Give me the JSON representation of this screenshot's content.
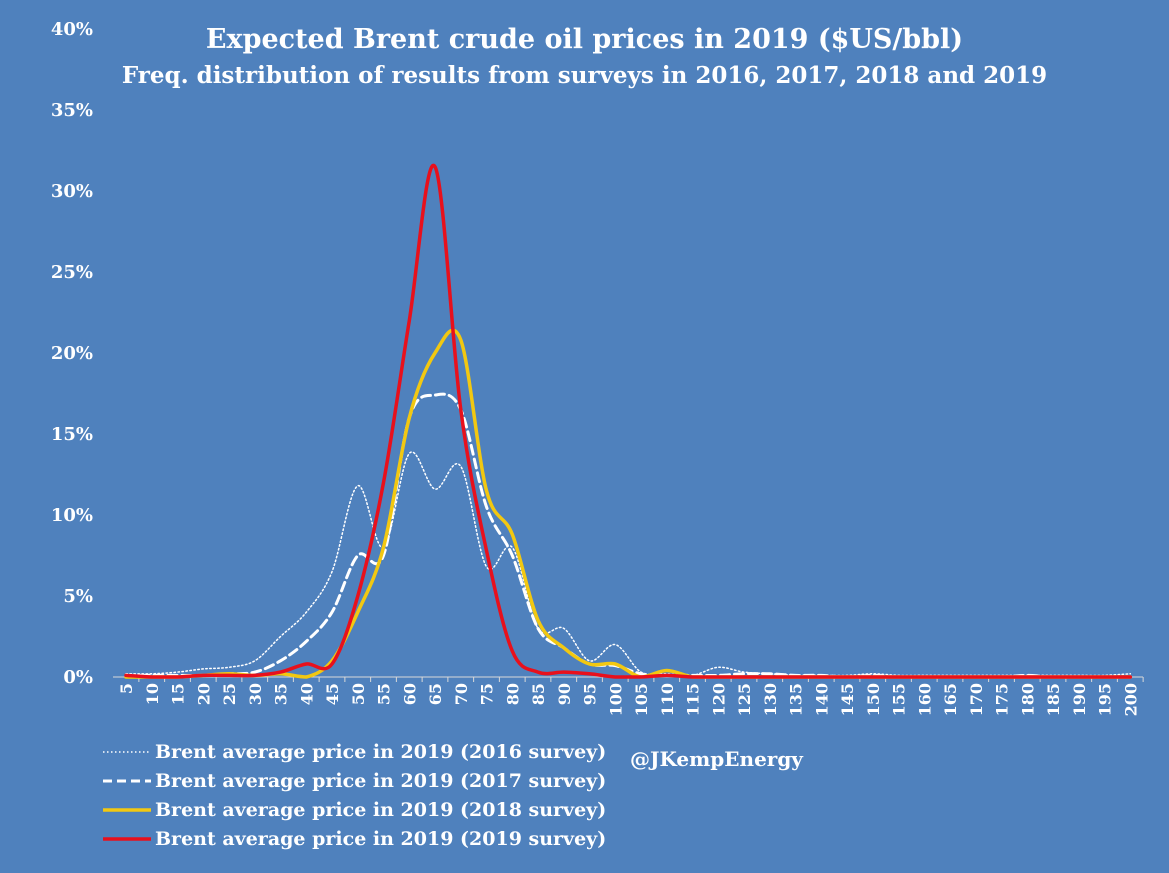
{
  "chart_data": {
    "type": "line",
    "title": "Expected Brent crude oil prices in 2019 ($US/bbl)",
    "subtitle": "Freq. distribution of results from surveys in 2016, 2017, 2018 and 2019",
    "xlabel": "",
    "ylabel": "",
    "x": [
      5,
      10,
      15,
      20,
      25,
      30,
      35,
      40,
      45,
      50,
      55,
      60,
      65,
      70,
      75,
      80,
      85,
      90,
      95,
      100,
      105,
      110,
      115,
      120,
      125,
      130,
      135,
      140,
      145,
      150,
      155,
      160,
      165,
      170,
      175,
      180,
      185,
      190,
      195,
      200
    ],
    "y_ticks": [
      "0%",
      "5%",
      "10%",
      "15%",
      "20%",
      "25%",
      "30%",
      "35%",
      "40%"
    ],
    "ylim": [
      0,
      40
    ],
    "y_unit": "%",
    "grid": false,
    "legend_position": "bottom-left",
    "series": [
      {
        "name": "Brent average price in 2019 (2016 survey)",
        "color": "#ffffff",
        "style": "dotted",
        "values": [
          0.2,
          0.2,
          0.3,
          0.5,
          0.6,
          1.0,
          2.5,
          4.0,
          6.5,
          11.8,
          8.0,
          13.8,
          11.6,
          13.0,
          6.8,
          8.0,
          3.0,
          3.0,
          1.0,
          2.0,
          0.3,
          0.2,
          0.1,
          0.6,
          0.3,
          0.2,
          0.1,
          0.1,
          0.1,
          0.2,
          0.1,
          0.1,
          0.1,
          0.1,
          0.1,
          0.1,
          0.1,
          0.1,
          0.1,
          0.2
        ]
      },
      {
        "name": "Brent average price in 2019 (2017 survey)",
        "color": "#ffffff",
        "style": "dashed",
        "values": [
          0.1,
          0.1,
          0.1,
          0.1,
          0.2,
          0.3,
          1.0,
          2.2,
          4.0,
          7.5,
          7.5,
          16.0,
          17.4,
          16.5,
          10.5,
          7.5,
          3.0,
          1.8,
          0.8,
          0.7,
          0.2,
          0.1,
          0.1,
          0.1,
          0.2,
          0.2,
          0.1,
          0.1,
          0.0,
          0.1,
          0.0,
          0.0,
          0.0,
          0.0,
          0.0,
          0.1,
          0.0,
          0.0,
          0.0,
          0.0
        ]
      },
      {
        "name": "Brent average price in 2019 (2018 survey)",
        "color": "#f2c811",
        "style": "solid",
        "values": [
          0.0,
          0.0,
          0.0,
          0.1,
          0.2,
          0.1,
          0.2,
          0.0,
          1.0,
          4.0,
          8.0,
          16.0,
          20.0,
          20.8,
          11.5,
          8.8,
          3.5,
          1.8,
          0.8,
          0.8,
          0.0,
          0.4,
          0.0,
          0.0,
          0.0,
          0.0,
          0.0,
          0.0,
          0.0,
          0.0,
          0.0,
          0.0,
          0.0,
          0.0,
          0.0,
          0.0,
          0.0,
          0.0,
          0.0,
          0.0
        ]
      },
      {
        "name": "Brent average price in 2019 (2019 survey)",
        "color": "#e8101c",
        "style": "solid",
        "values": [
          0.1,
          0.0,
          0.0,
          0.1,
          0.1,
          0.1,
          0.3,
          0.8,
          0.8,
          5.0,
          12.0,
          22.0,
          31.5,
          16.5,
          7.8,
          1.6,
          0.3,
          0.3,
          0.2,
          0.0,
          0.0,
          0.1,
          0.0,
          0.0,
          0.0,
          0.0,
          0.0,
          0.0,
          0.0,
          0.0,
          0.0,
          0.0,
          0.0,
          0.0,
          0.0,
          0.0,
          0.0,
          0.0,
          0.0,
          0.0
        ]
      }
    ]
  },
  "credit": "@JKempEnergy"
}
